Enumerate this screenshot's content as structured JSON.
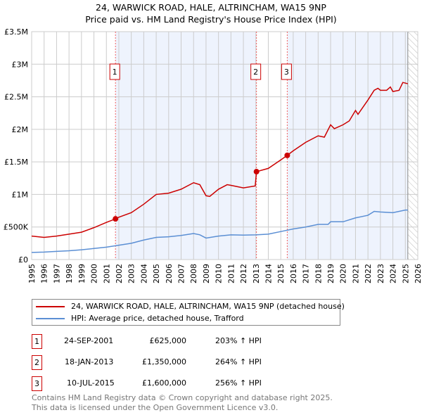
{
  "chart_data": {
    "type": "line",
    "title": "24, WARWICK ROAD, HALE, ALTRINCHAM, WA15 9NP",
    "subtitle": "Price paid vs. HM Land Registry's House Price Index (HPI)",
    "xlim": [
      1995,
      2026
    ],
    "ylim": [
      0,
      3500000
    ],
    "x_ticks": [
      "1995",
      "1996",
      "1997",
      "1998",
      "1999",
      "2000",
      "2001",
      "2002",
      "2003",
      "2004",
      "2005",
      "2006",
      "2007",
      "2008",
      "2009",
      "2010",
      "2011",
      "2012",
      "2013",
      "2014",
      "2015",
      "2016",
      "2017",
      "2018",
      "2019",
      "2020",
      "2021",
      "2022",
      "2023",
      "2024",
      "2025",
      "2026"
    ],
    "y_ticks": [
      {
        "v": 0,
        "label": "£0"
      },
      {
        "v": 500000,
        "label": "£500K"
      },
      {
        "v": 1000000,
        "label": "£1M"
      },
      {
        "v": 1500000,
        "label": "£1.5M"
      },
      {
        "v": 2000000,
        "label": "£2M"
      },
      {
        "v": 2500000,
        "label": "£2.5M"
      },
      {
        "v": 3000000,
        "label": "£3M"
      },
      {
        "v": 3500000,
        "label": "£3.5M"
      }
    ],
    "grid": true,
    "series": [
      {
        "name": "24, WARWICK ROAD, HALE, ALTRINCHAM, WA15 9NP (detached house)",
        "color": "#cc0000",
        "points": [
          [
            1995,
            360000
          ],
          [
            1996,
            340000
          ],
          [
            1997,
            360000
          ],
          [
            1998,
            390000
          ],
          [
            1999,
            420000
          ],
          [
            2000,
            490000
          ],
          [
            2001,
            570000
          ],
          [
            2001.73,
            625000
          ],
          [
            2002,
            650000
          ],
          [
            2003,
            720000
          ],
          [
            2004,
            850000
          ],
          [
            2005,
            1000000
          ],
          [
            2006,
            1020000
          ],
          [
            2007,
            1080000
          ],
          [
            2008,
            1180000
          ],
          [
            2008.5,
            1150000
          ],
          [
            2009,
            980000
          ],
          [
            2009.3,
            970000
          ],
          [
            2010,
            1080000
          ],
          [
            2010.7,
            1150000
          ],
          [
            2011,
            1140000
          ],
          [
            2012,
            1100000
          ],
          [
            2012.95,
            1130000
          ],
          [
            2013.05,
            1350000
          ],
          [
            2014,
            1400000
          ],
          [
            2015,
            1530000
          ],
          [
            2015.52,
            1600000
          ],
          [
            2016,
            1670000
          ],
          [
            2017,
            1800000
          ],
          [
            2018,
            1900000
          ],
          [
            2018.5,
            1880000
          ],
          [
            2019,
            2070000
          ],
          [
            2019.3,
            2010000
          ],
          [
            2020,
            2070000
          ],
          [
            2020.5,
            2130000
          ],
          [
            2021,
            2290000
          ],
          [
            2021.2,
            2230000
          ],
          [
            2022,
            2450000
          ],
          [
            2022.5,
            2600000
          ],
          [
            2022.8,
            2630000
          ],
          [
            2023,
            2600000
          ],
          [
            2023.5,
            2600000
          ],
          [
            2023.8,
            2650000
          ],
          [
            2024,
            2580000
          ],
          [
            2024.5,
            2600000
          ],
          [
            2024.8,
            2720000
          ],
          [
            2025.2,
            2700000
          ]
        ]
      },
      {
        "name": "HPI: Average price, detached house, Trafford",
        "color": "#5b8fd4",
        "points": [
          [
            1995,
            110000
          ],
          [
            1996,
            115000
          ],
          [
            1997,
            125000
          ],
          [
            1998,
            135000
          ],
          [
            1999,
            150000
          ],
          [
            2000,
            170000
          ],
          [
            2001,
            190000
          ],
          [
            2002,
            220000
          ],
          [
            2003,
            250000
          ],
          [
            2004,
            300000
          ],
          [
            2005,
            340000
          ],
          [
            2006,
            350000
          ],
          [
            2007,
            370000
          ],
          [
            2008,
            400000
          ],
          [
            2008.5,
            380000
          ],
          [
            2009,
            330000
          ],
          [
            2010,
            360000
          ],
          [
            2011,
            380000
          ],
          [
            2012,
            375000
          ],
          [
            2013,
            380000
          ],
          [
            2014,
            390000
          ],
          [
            2015,
            430000
          ],
          [
            2016,
            470000
          ],
          [
            2017,
            500000
          ],
          [
            2018,
            540000
          ],
          [
            2018.8,
            540000
          ],
          [
            2019,
            580000
          ],
          [
            2020,
            580000
          ],
          [
            2021,
            640000
          ],
          [
            2022,
            680000
          ],
          [
            2022.5,
            740000
          ],
          [
            2023,
            730000
          ],
          [
            2024,
            720000
          ],
          [
            2025,
            760000
          ],
          [
            2025.2,
            760000
          ]
        ]
      }
    ],
    "sales": [
      {
        "id": "1",
        "x": 2001.73,
        "value": 625000,
        "date": "24-SEP-2001",
        "price": "£625,000",
        "hpi": "203% ↑ HPI"
      },
      {
        "id": "2",
        "x": 2013.05,
        "value": 1350000,
        "date": "18-JAN-2013",
        "price": "£1,350,000",
        "hpi": "264% ↑ HPI"
      },
      {
        "id": "3",
        "x": 2015.52,
        "value": 1600000,
        "date": "10-JUL-2015",
        "price": "£1,600,000",
        "hpi": "256% ↑ HPI"
      }
    ],
    "shaded": [
      [
        2001.73,
        2013.05
      ],
      [
        2015.52,
        2025.2
      ]
    ],
    "hatch_from": 2025.2,
    "legend_position": "below"
  },
  "footer": {
    "line1": "Contains HM Land Registry data © Crown copyright and database right 2025.",
    "line2": "This data is licensed under the Open Government Licence v3.0."
  }
}
